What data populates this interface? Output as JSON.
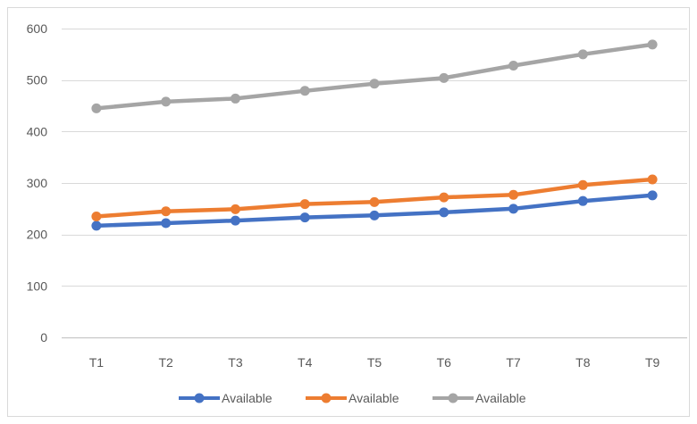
{
  "chart_data": {
    "type": "line",
    "title": "",
    "xlabel": "",
    "ylabel": "",
    "categories": [
      "T1",
      "T2",
      "T3",
      "T4",
      "T5",
      "T6",
      "T7",
      "T8",
      "T9"
    ],
    "ylim": [
      0,
      600
    ],
    "yticks": [
      "0",
      "100",
      "200",
      "300",
      "400",
      "500",
      "600"
    ],
    "grid": true,
    "legend_position": "bottom",
    "series": [
      {
        "name": "Available",
        "color": "#4472C4",
        "values": [
          217,
          222,
          227,
          233,
          237,
          243,
          250,
          265,
          276
        ]
      },
      {
        "name": "Available",
        "color": "#ED7D31",
        "values": [
          235,
          245,
          249,
          259,
          263,
          272,
          277,
          296,
          307
        ]
      },
      {
        "name": "Available",
        "color": "#A5A5A5",
        "values": [
          445,
          458,
          464,
          479,
          493,
          504,
          528,
          550,
          569
        ]
      }
    ]
  }
}
